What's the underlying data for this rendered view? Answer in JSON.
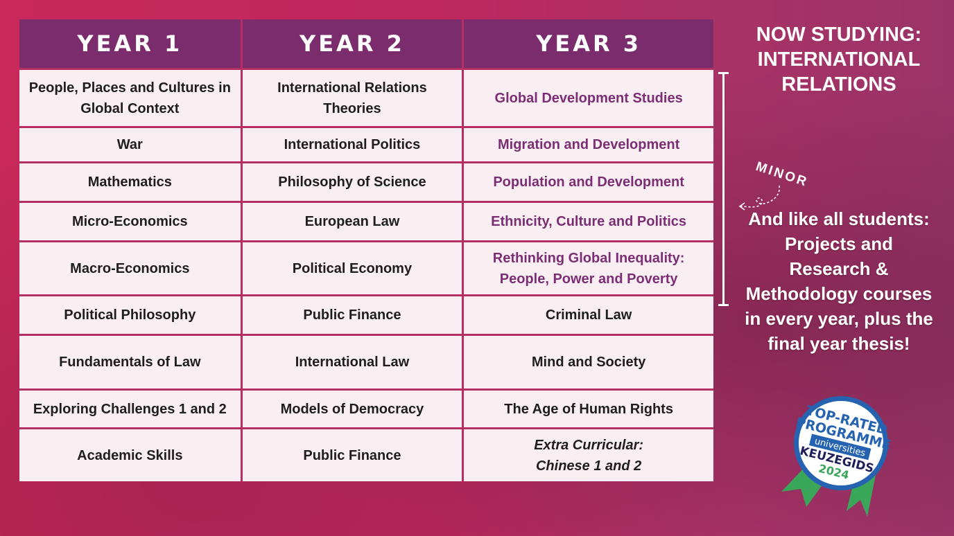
{
  "curriculum": {
    "headers": [
      "YEAR 1",
      "YEAR 2",
      "YEAR 3"
    ],
    "rows": [
      [
        "People, Places and Cultures in Global Context",
        "International Relations Theories",
        "Global Development Studies"
      ],
      [
        "War",
        "International Politics",
        "Migration and Development"
      ],
      [
        "Mathematics",
        "Philosophy of Science",
        "Population and Development"
      ],
      [
        "Micro-Economics",
        "European Law",
        "Ethnicity, Culture and Politics"
      ],
      [
        "Macro-Economics",
        "Political Economy",
        "Rethinking Global Inequality: People, Power and Poverty"
      ],
      [
        "Political Philosophy",
        "Public Finance",
        "Criminal Law"
      ],
      [
        "Fundamentals of Law",
        "International Law",
        "Mind and Society"
      ],
      [
        "Exploring Challenges 1 and 2",
        "Models of Democracy",
        "The Age of Human Rights"
      ],
      [
        "Academic Skills",
        "Public Finance",
        "Extra Curricular: Chinese 1 and 2"
      ]
    ]
  },
  "side": {
    "title": "NOW STUDYING: INTERNATIONAL RELATIONS",
    "minor_label": "MINOR",
    "note": "And like all students: Projects and Research & Methodology courses in every year, plus the final year thesis!"
  },
  "badge": {
    "line1": "TOP-RATED",
    "line2": "PROGRAMME",
    "line3": "universities",
    "line4": "KEUZEGIDS",
    "line5": "2024"
  },
  "colors": {
    "header_bg": "#7a2c6c",
    "minor_text": "#7b2e73",
    "cell_bg": "#f9eef2",
    "background": "#c8285a"
  }
}
